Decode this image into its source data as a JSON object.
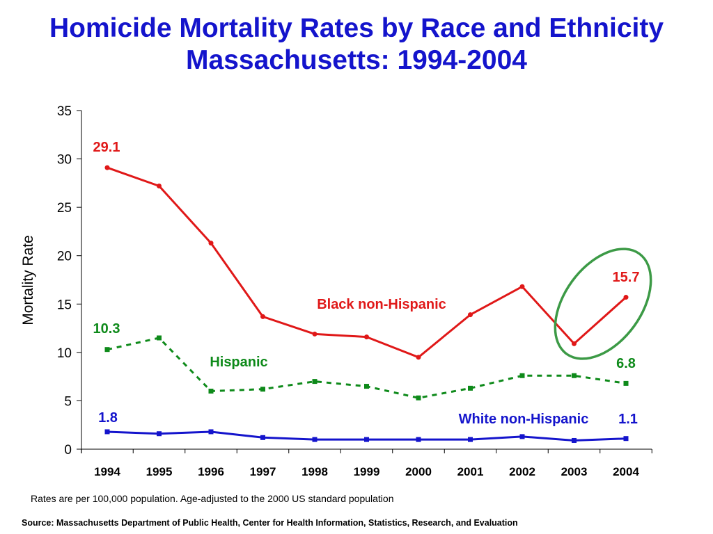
{
  "chart_data": {
    "type": "line",
    "title": "Homicide Mortality Rates by Race and Ethnicity",
    "subtitle": "Massachusetts: 1994-2004",
    "xlabel": "",
    "ylabel": "Mortality Rate",
    "ylim": [
      0,
      35
    ],
    "yticks": [
      "0",
      "5",
      "10",
      "15",
      "20",
      "25",
      "30",
      "35"
    ],
    "categories": [
      "1994",
      "1995",
      "1996",
      "1997",
      "1998",
      "1999",
      "2000",
      "2001",
      "2002",
      "2003",
      "2004"
    ],
    "grid": false,
    "series": [
      {
        "name": "Black non-Hispanic",
        "color": "#e01818",
        "line_style": "solid",
        "marker": "circle",
        "values": [
          29.1,
          27.2,
          21.3,
          13.7,
          11.9,
          11.6,
          9.5,
          13.9,
          16.8,
          10.9,
          15.7
        ],
        "start_label": "29.1",
        "end_label": "15.7"
      },
      {
        "name": "Hispanic",
        "color": "#0e8a1a",
        "line_style": "dashed",
        "marker": "square",
        "values": [
          10.3,
          11.5,
          6.0,
          6.2,
          7.0,
          6.5,
          5.3,
          6.3,
          7.6,
          7.6,
          6.8
        ],
        "start_label": "10.3",
        "end_label": "6.8"
      },
      {
        "name": "White non-Hispanic",
        "color": "#1414cc",
        "line_style": "solid",
        "marker": "square",
        "values": [
          1.8,
          1.6,
          1.8,
          1.2,
          1.0,
          1.0,
          1.0,
          1.0,
          1.3,
          0.9,
          1.1
        ],
        "start_label": "1.8",
        "end_label": "1.1"
      }
    ],
    "annotations": [
      {
        "type": "ellipse",
        "color": "#3c9a46",
        "around": "Black non-Hispanic 2003-2004"
      }
    ]
  },
  "footnote": "Rates are per 100,000 population.  Age-adjusted to the 2000 US standard population",
  "source": "Source:  Massachusetts Department of Public Health, Center for Health Information, Statistics, Research, and Evaluation"
}
